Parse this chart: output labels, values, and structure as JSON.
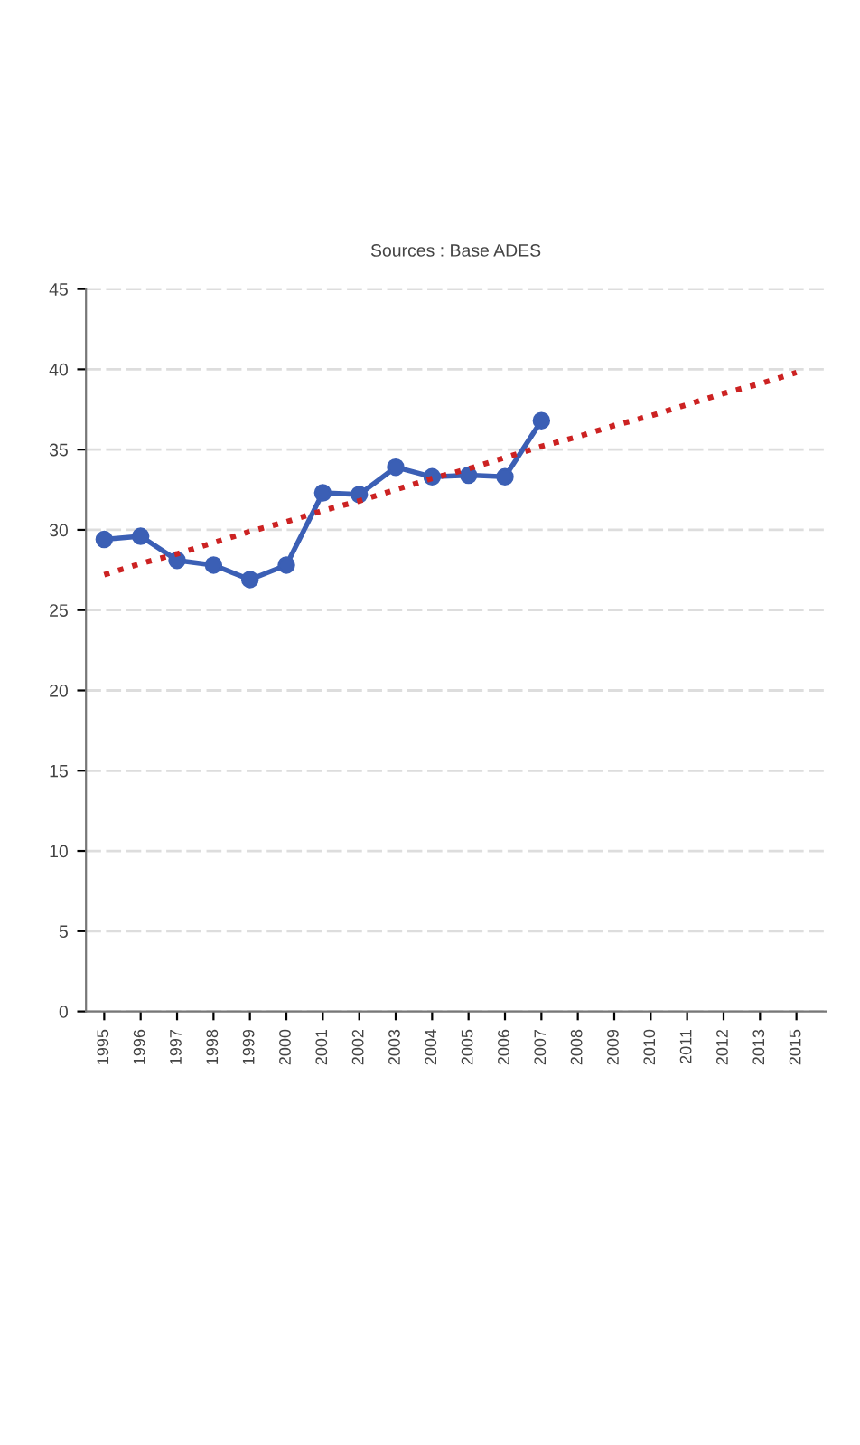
{
  "chart_data": {
    "type": "line",
    "annotations": [
      "Sources : Base ADES"
    ],
    "categories": [
      "1995",
      "1996",
      "1997",
      "1998",
      "1999",
      "2000",
      "2001",
      "2002",
      "2003",
      "2004",
      "2005",
      "2006",
      "2007",
      "2008",
      "2009",
      "2010",
      "2011",
      "2012",
      "2013",
      "2015"
    ],
    "series": [
      {
        "color": "#3b5fb5",
        "marker": "circle",
        "line_style": "solid",
        "values": [
          29.4,
          29.6,
          28.1,
          27.8,
          26.9,
          27.8,
          32.3,
          32.2,
          33.9,
          33.3,
          33.4,
          33.3,
          36.8,
          null,
          null,
          null,
          null,
          null,
          null,
          null
        ]
      },
      {
        "type": "line",
        "color": "#cc2222",
        "marker": "none",
        "line_style": "dotted",
        "values": [
          27.2,
          27.9,
          28.5,
          29.2,
          29.9,
          30.5,
          31.2,
          31.8,
          32.5,
          33.2,
          33.8,
          34.5,
          35.2,
          35.8,
          36.5,
          37.1,
          37.8,
          38.5,
          39.1,
          39.8
        ]
      }
    ],
    "ylim": [
      0,
      45
    ],
    "yticks": [
      0,
      5,
      10,
      15,
      20,
      25,
      30,
      35,
      40,
      45
    ],
    "grid": "y",
    "legend": false
  }
}
